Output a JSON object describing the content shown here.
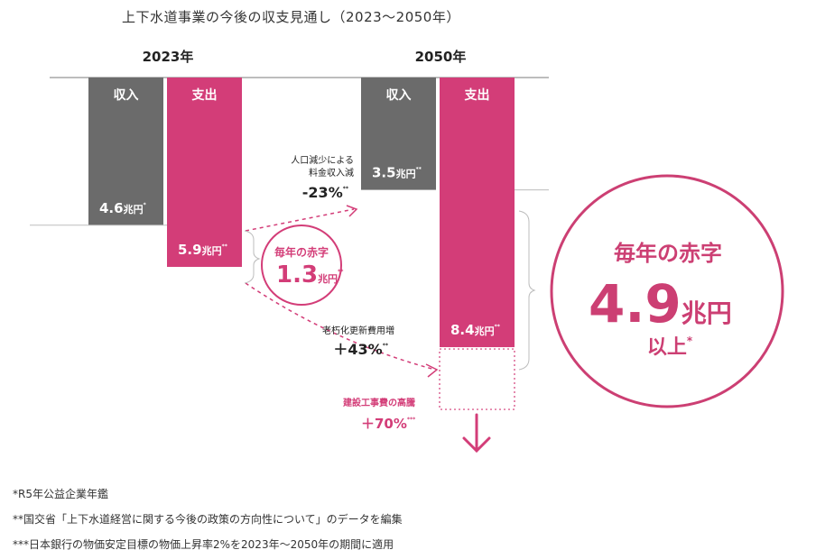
{
  "page": {
    "title": "上下水道事業の今後の収支見通し（2023〜2050年）",
    "notes": [
      "*R5年公益企業年鑑",
      "**国交省「上下水道経営に関する今後の政策の方向性について」のデータを編集",
      "***日本銀行の物価安定目標の物価上昇率2%を2023年〜2050年の期間に適用"
    ]
  },
  "colors": {
    "income": "#6b6b6b",
    "expense": "#d33d78",
    "accent": "#cc3f73",
    "axis": "#bdbdbd"
  },
  "chart_data": {
    "type": "bar",
    "title": "上下水道事業の今後の収支見通し（2023〜2050年）",
    "groups": [
      "2023年",
      "2050年"
    ],
    "series": [
      {
        "name": "収入",
        "values": [
          4.6,
          3.5
        ],
        "labels": [
          "4.6",
          "3.5"
        ]
      },
      {
        "name": "支出",
        "values": [
          5.9,
          8.4
        ],
        "labels": [
          "5.9",
          "8.4"
        ]
      }
    ],
    "unit": "兆円",
    "value_marks": [
      "*",
      "**",
      "**",
      "**"
    ],
    "extra": {
      "name": "建設工事費の高騰",
      "value_label": "＋70%",
      "mark": "***"
    },
    "annotations": {
      "deficit_2023": {
        "label": "毎年の赤字",
        "value": "1.3",
        "unit": "兆円",
        "mark": "**"
      },
      "deficit_2050": {
        "label": "毎年の赤字",
        "value": "4.9",
        "unit": "兆円",
        "suffix": "以上",
        "mark": "*"
      },
      "population": {
        "line1": "人口減少による",
        "line2": "料金収入減",
        "value": "-23%",
        "mark": "**"
      },
      "aging": {
        "line1": "老朽化更新費用増",
        "value": "＋43%",
        "mark": "**"
      }
    }
  }
}
